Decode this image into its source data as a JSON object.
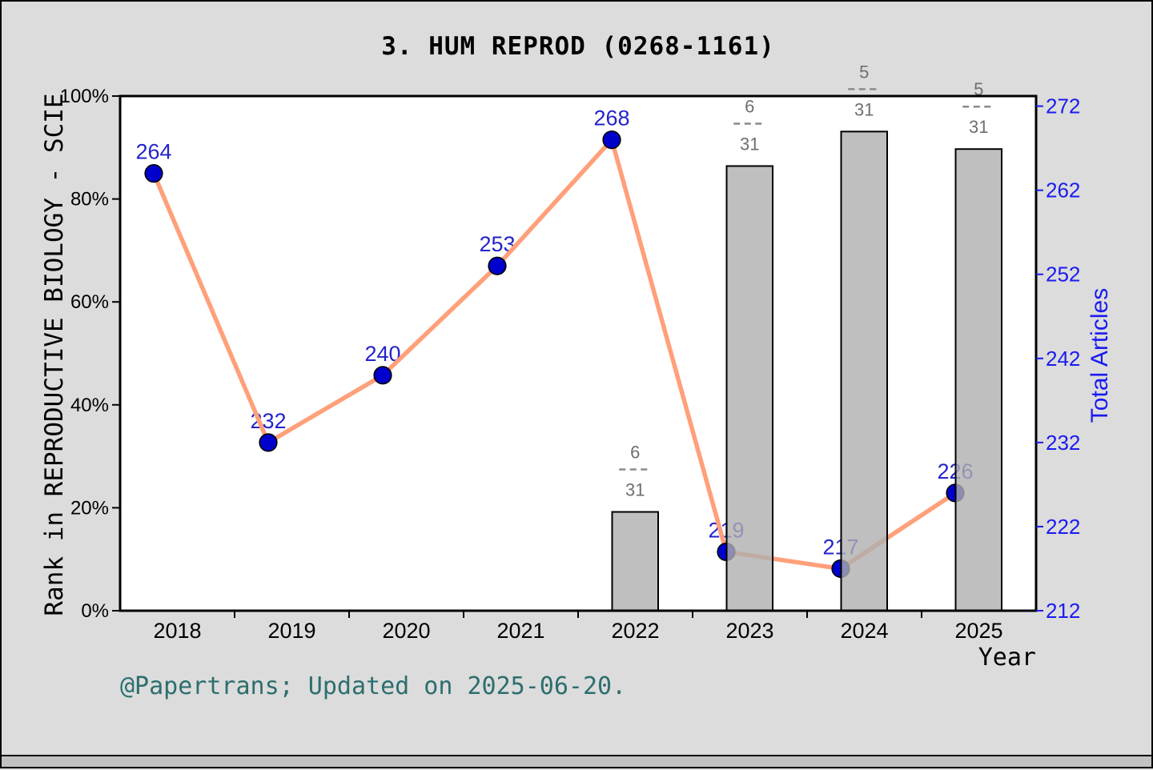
{
  "page": {
    "title": "3. HUM REPROD (0268-1161)",
    "footer": "@Papertrans; Updated on 2025-06-20."
  },
  "chart_data": {
    "type": "line+bar",
    "title": "3. HUM REPROD (0268-1161)",
    "x_axis": {
      "label": "Year",
      "categories": [
        "2018",
        "2019",
        "2020",
        "2021",
        "2022",
        "2023",
        "2024",
        "2025"
      ]
    },
    "left_axis": {
      "label": "Rank in REPRODUCTIVE BIOLOGY - SCIE",
      "tick_labels": [
        "0%",
        "20%",
        "40%",
        "60%",
        "80%",
        "100%"
      ],
      "tick_values": [
        0,
        20,
        40,
        60,
        80,
        100
      ],
      "range": [
        0,
        100
      ]
    },
    "right_axis": {
      "label": "Total Articles",
      "tick_values": [
        212,
        222,
        232,
        242,
        252,
        262,
        272
      ],
      "range": [
        212,
        273.2
      ]
    },
    "line_series": {
      "name": "Total Articles",
      "axis": "right",
      "values": [
        264,
        232,
        240,
        253,
        268,
        219,
        217,
        226
      ],
      "point_labels": [
        "264",
        "232",
        "240",
        "253",
        "268",
        "219",
        "217",
        "226"
      ]
    },
    "bar_series": {
      "name": "Rank in category",
      "axis": "left",
      "bars": [
        {
          "year": "2022",
          "percent": 19.2,
          "numerator": "6",
          "denominator": "31"
        },
        {
          "year": "2023",
          "percent": 86.4,
          "numerator": "6",
          "denominator": "31"
        },
        {
          "year": "2024",
          "percent": 93.1,
          "numerator": "5",
          "denominator": "31"
        },
        {
          "year": "2025",
          "percent": 89.7,
          "numerator": "5",
          "denominator": "31"
        }
      ]
    },
    "colors": {
      "background": "#dcdcdc",
      "plot_background": "#ffffff",
      "line": "#ffa07a",
      "marker_fill": "#0000cd",
      "marker_edge": "#000000",
      "point_label": "#2323cb",
      "right_axis_text": "#1b1bf0",
      "left_axis_text": "#000000",
      "bar_fill": "#afafaf",
      "bar_edge": "#000000",
      "fraction_label": "#6e6e6e",
      "footer": "#2d6e6e"
    },
    "legend": {
      "visible": false
    }
  }
}
